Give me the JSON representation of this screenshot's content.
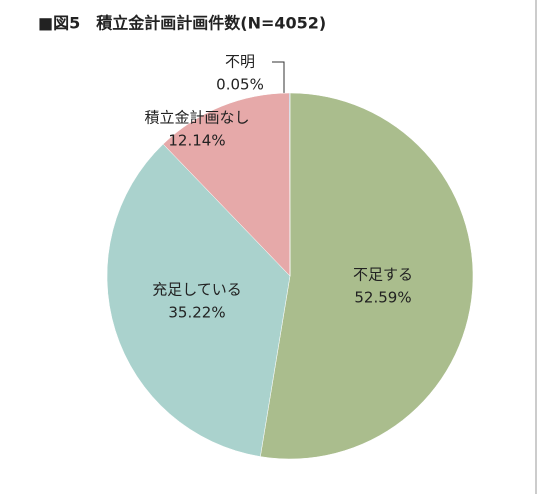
{
  "chart_data": {
    "type": "pie",
    "title": "■図5　積立金計画計画件数(N=4052)",
    "categories": [
      "不足する",
      "充足している",
      "積立金計画なし",
      "不明"
    ],
    "values": [
      52.59,
      35.22,
      12.14,
      0.05
    ],
    "value_labels": [
      "52.59%",
      "35.22%",
      "12.14%",
      "0.05%"
    ],
    "colors": [
      "#aabd8d",
      "#aad2cd",
      "#e6a9a9",
      "#1f5c99"
    ]
  }
}
